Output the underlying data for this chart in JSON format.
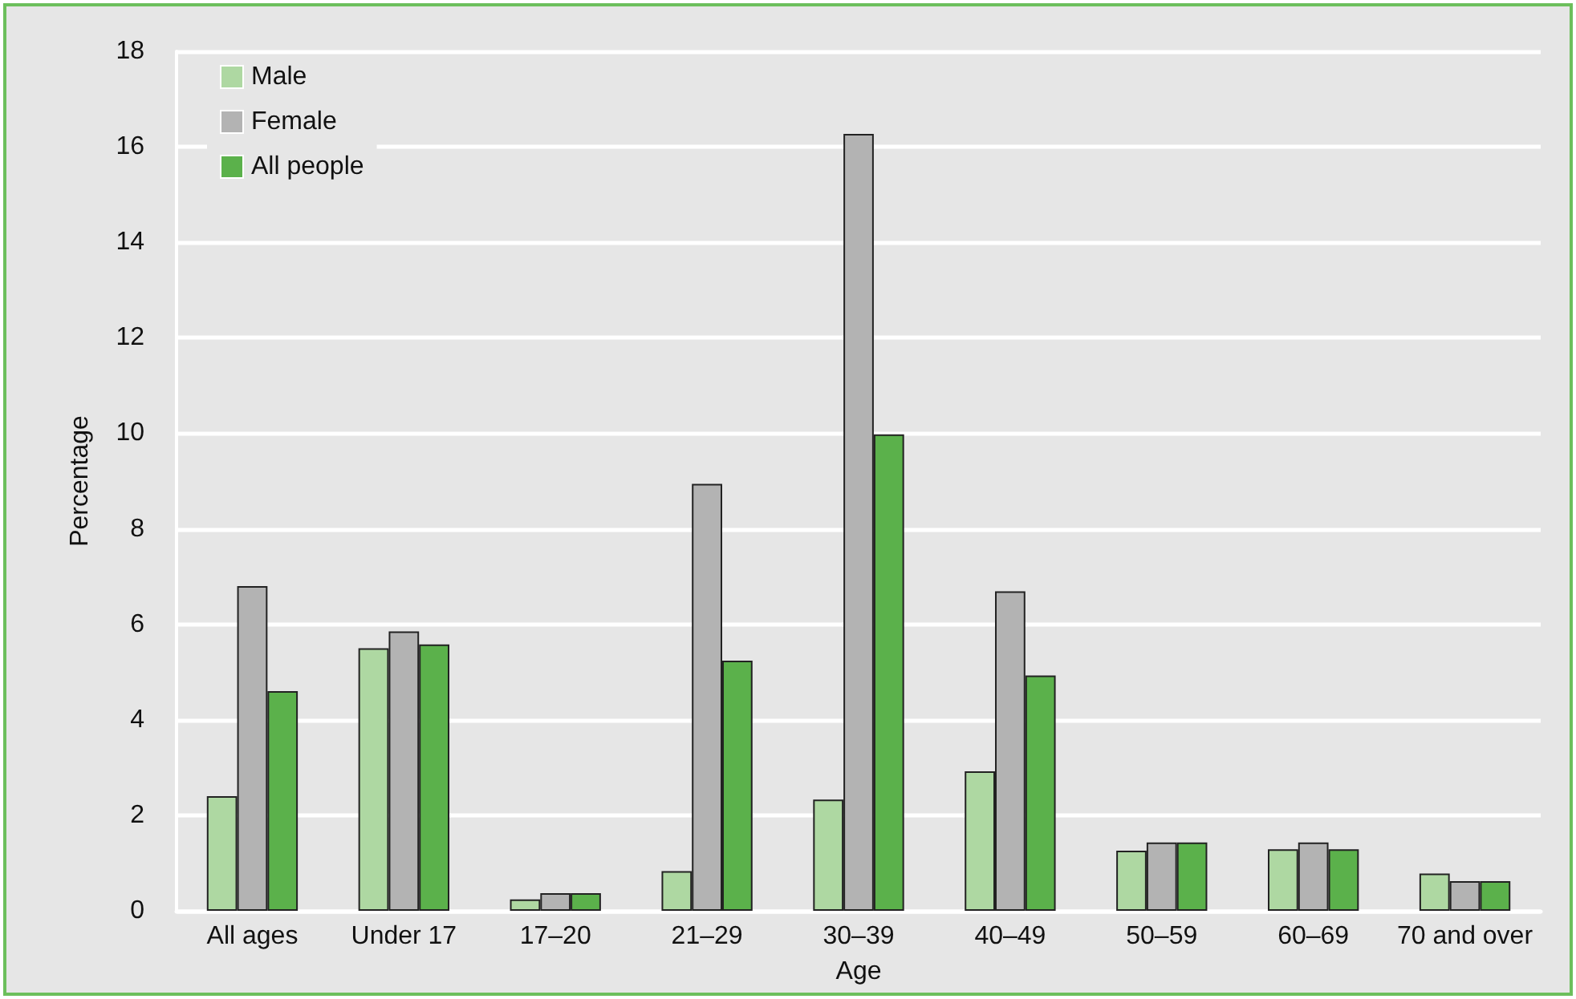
{
  "chart_data": {
    "type": "bar",
    "xlabel": "Age",
    "ylabel": "Percentage",
    "categories": [
      "All ages",
      "Under 17",
      "17–20",
      "21–29",
      "30–39",
      "40–49",
      "50–59",
      "60–69",
      "70 and over"
    ],
    "series": [
      {
        "name": "Male",
        "color": "#aed8a2",
        "values": [
          2.4,
          5.5,
          0.24,
          0.83,
          2.33,
          2.92,
          1.26,
          1.29,
          0.78
        ]
      },
      {
        "name": "Female",
        "color": "#b3b3b3",
        "values": [
          6.8,
          5.85,
          0.37,
          8.94,
          16.27,
          6.69,
          1.43,
          1.43,
          0.62
        ]
      },
      {
        "name": "All people",
        "color": "#5bb14b",
        "values": [
          4.6,
          5.58,
          0.37,
          5.24,
          9.98,
          4.93,
          1.43,
          1.29,
          0.62
        ]
      }
    ],
    "ylim": [
      0,
      18
    ],
    "yticks": [
      0,
      2,
      4,
      6,
      8,
      10,
      12,
      14,
      16,
      18
    ],
    "grid": "y",
    "legend": "top left"
  }
}
